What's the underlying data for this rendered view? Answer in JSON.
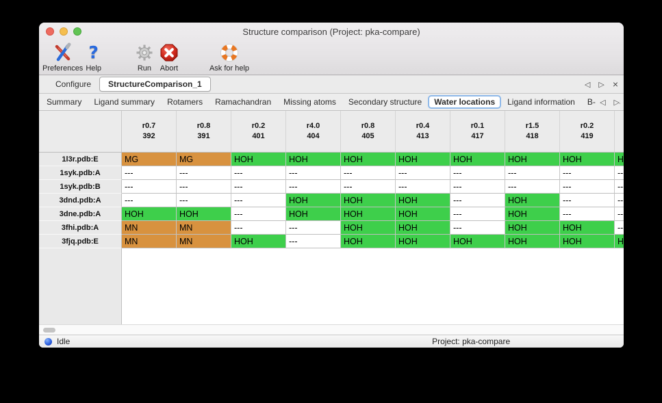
{
  "window": {
    "title": "Structure comparison (Project: pka-compare)"
  },
  "toolbar": {
    "items": [
      {
        "label": "Preferences",
        "icon": "tools-icon"
      },
      {
        "label": "Help",
        "icon": "question-icon"
      },
      {
        "label": "Run",
        "icon": "gear-icon"
      },
      {
        "label": "Abort",
        "icon": "abort-icon"
      },
      {
        "label": "Ask for help",
        "icon": "lifebuoy-icon"
      }
    ],
    "help_glyph": "?"
  },
  "document_tabs": {
    "tabs": [
      {
        "label": "Configure",
        "active": false
      },
      {
        "label": "StructureComparison_1",
        "active": true
      }
    ],
    "nav_left": "◁",
    "nav_right": "▷",
    "nav_close": "×"
  },
  "view_tabs": {
    "tabs": [
      "Summary",
      "Ligand summary",
      "Rotamers",
      "Ramachandran",
      "Missing atoms",
      "Secondary structure",
      "Water locations",
      "Ligand information",
      "B-factors"
    ],
    "selected": "Water locations",
    "selected_index": 6,
    "nav_left": "◁",
    "nav_right": "▷"
  },
  "table": {
    "columns": [
      {
        "line1": "r0.7",
        "line2": "392"
      },
      {
        "line1": "r0.8",
        "line2": "391"
      },
      {
        "line1": "r0.2",
        "line2": "401"
      },
      {
        "line1": "r4.0",
        "line2": "404"
      },
      {
        "line1": "r0.8",
        "line2": "405"
      },
      {
        "line1": "r0.4",
        "line2": "413"
      },
      {
        "line1": "r0.1",
        "line2": "417"
      },
      {
        "line1": "r1.5",
        "line2": "418"
      },
      {
        "line1": "r0.2",
        "line2": "419"
      },
      {
        "line1": "",
        "line2": ""
      }
    ],
    "rows": [
      {
        "label": "1l3r.pdb:E",
        "cells": [
          {
            "text": "MG",
            "type": "metal"
          },
          {
            "text": "MG",
            "type": "metal"
          },
          {
            "text": "HOH",
            "type": "water"
          },
          {
            "text": "HOH",
            "type": "water"
          },
          {
            "text": "HOH",
            "type": "water"
          },
          {
            "text": "HOH",
            "type": "water"
          },
          {
            "text": "HOH",
            "type": "water"
          },
          {
            "text": "HOH",
            "type": "water"
          },
          {
            "text": "HOH",
            "type": "water"
          },
          {
            "text": "HOH",
            "type": "water"
          }
        ]
      },
      {
        "label": "1syk.pdb:A",
        "cells": [
          {
            "text": "---",
            "type": "none"
          },
          {
            "text": "---",
            "type": "none"
          },
          {
            "text": "---",
            "type": "none"
          },
          {
            "text": "---",
            "type": "none"
          },
          {
            "text": "---",
            "type": "none"
          },
          {
            "text": "---",
            "type": "none"
          },
          {
            "text": "---",
            "type": "none"
          },
          {
            "text": "---",
            "type": "none"
          },
          {
            "text": "---",
            "type": "none"
          },
          {
            "text": "---",
            "type": "none"
          }
        ]
      },
      {
        "label": "1syk.pdb:B",
        "cells": [
          {
            "text": "---",
            "type": "none"
          },
          {
            "text": "---",
            "type": "none"
          },
          {
            "text": "---",
            "type": "none"
          },
          {
            "text": "---",
            "type": "none"
          },
          {
            "text": "---",
            "type": "none"
          },
          {
            "text": "---",
            "type": "none"
          },
          {
            "text": "---",
            "type": "none"
          },
          {
            "text": "---",
            "type": "none"
          },
          {
            "text": "---",
            "type": "none"
          },
          {
            "text": "---",
            "type": "none"
          }
        ]
      },
      {
        "label": "3dnd.pdb:A",
        "cells": [
          {
            "text": "---",
            "type": "none"
          },
          {
            "text": "---",
            "type": "none"
          },
          {
            "text": "---",
            "type": "none"
          },
          {
            "text": "HOH",
            "type": "water"
          },
          {
            "text": "HOH",
            "type": "water"
          },
          {
            "text": "HOH",
            "type": "water"
          },
          {
            "text": "---",
            "type": "none"
          },
          {
            "text": "HOH",
            "type": "water"
          },
          {
            "text": "---",
            "type": "none"
          },
          {
            "text": "---",
            "type": "none"
          }
        ]
      },
      {
        "label": "3dne.pdb:A",
        "cells": [
          {
            "text": "HOH",
            "type": "water"
          },
          {
            "text": "HOH",
            "type": "water"
          },
          {
            "text": "---",
            "type": "none"
          },
          {
            "text": "HOH",
            "type": "water"
          },
          {
            "text": "HOH",
            "type": "water"
          },
          {
            "text": "HOH",
            "type": "water"
          },
          {
            "text": "---",
            "type": "none"
          },
          {
            "text": "HOH",
            "type": "water"
          },
          {
            "text": "---",
            "type": "none"
          },
          {
            "text": "---",
            "type": "none"
          }
        ]
      },
      {
        "label": "3fhi.pdb:A",
        "cells": [
          {
            "text": "MN",
            "type": "metal"
          },
          {
            "text": "MN",
            "type": "metal"
          },
          {
            "text": "---",
            "type": "none"
          },
          {
            "text": "---",
            "type": "none"
          },
          {
            "text": "HOH",
            "type": "water"
          },
          {
            "text": "HOH",
            "type": "water"
          },
          {
            "text": "---",
            "type": "none"
          },
          {
            "text": "HOH",
            "type": "water"
          },
          {
            "text": "HOH",
            "type": "water"
          },
          {
            "text": "---",
            "type": "none"
          }
        ]
      },
      {
        "label": "3fjq.pdb:E",
        "cells": [
          {
            "text": "MN",
            "type": "metal"
          },
          {
            "text": "MN",
            "type": "metal"
          },
          {
            "text": "HOH",
            "type": "water"
          },
          {
            "text": "---",
            "type": "none"
          },
          {
            "text": "HOH",
            "type": "water"
          },
          {
            "text": "HOH",
            "type": "water"
          },
          {
            "text": "HOH",
            "type": "water"
          },
          {
            "text": "HOH",
            "type": "water"
          },
          {
            "text": "HOH",
            "type": "water"
          },
          {
            "text": "HOH",
            "type": "water"
          }
        ]
      }
    ]
  },
  "colors": {
    "water_green": "#3ECF4B",
    "metal_orange": "#D8923F",
    "selected_tab_ring": "#8FB9E9"
  },
  "status_bar": {
    "status": "Idle",
    "project": "Project: pka-compare"
  }
}
